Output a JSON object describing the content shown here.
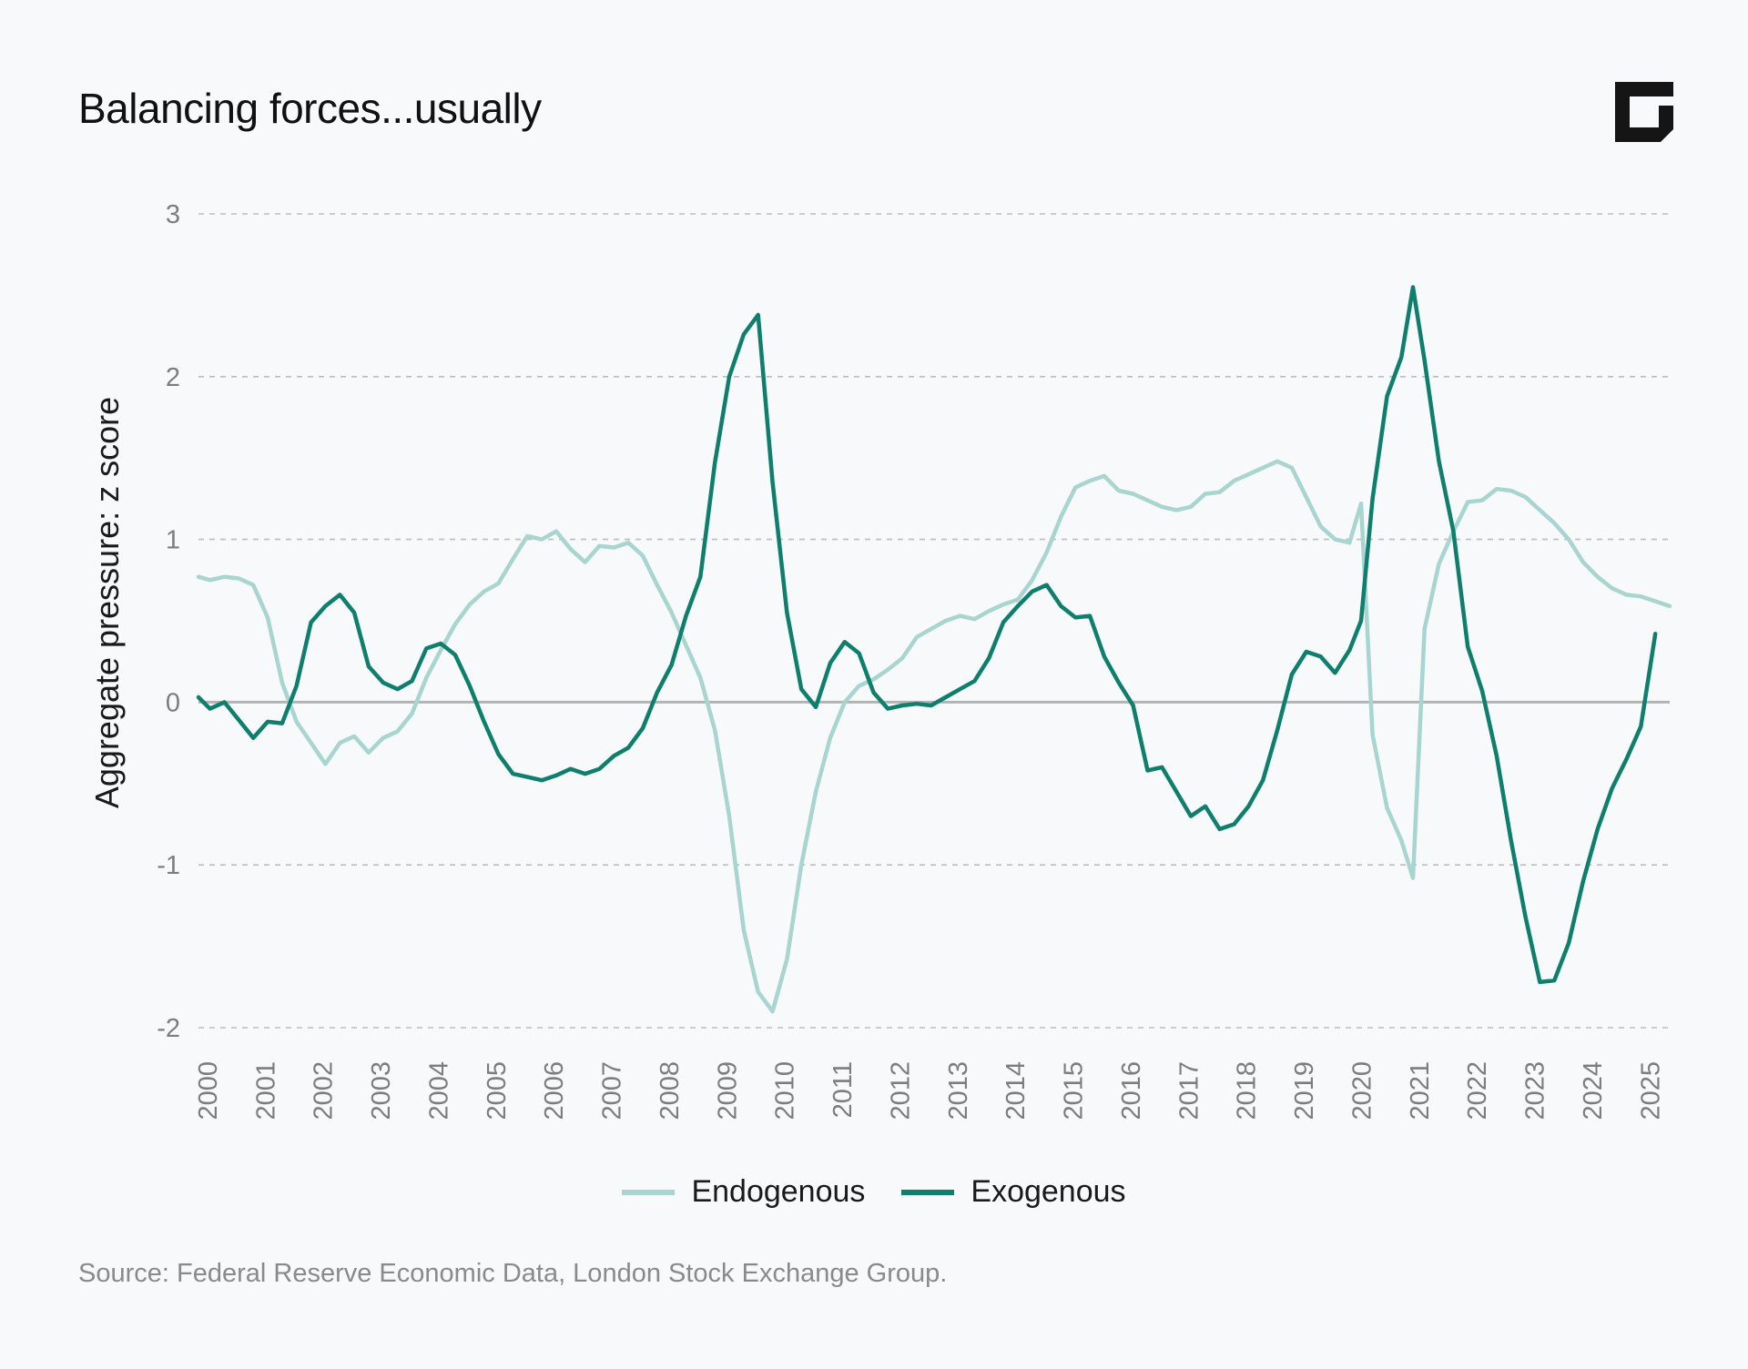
{
  "chart_data": {
    "type": "line",
    "title": "Balancing forces...usually",
    "ylabel": "Aggregate pressure: z score",
    "xlabel": "",
    "ylim": [
      -2,
      3
    ],
    "xlim": [
      2000,
      2025.5
    ],
    "yticks": [
      3,
      2,
      1,
      0,
      -1,
      -2
    ],
    "ytick_labels": [
      "3",
      "2",
      "1",
      "0",
      "-1",
      "-2"
    ],
    "xticks": [
      2000,
      2001,
      2002,
      2003,
      2004,
      2005,
      2006,
      2007,
      2008,
      2009,
      2010,
      2011,
      2012,
      2013,
      2014,
      2015,
      2016,
      2017,
      2018,
      2019,
      2020,
      2021,
      2022,
      2023,
      2024,
      2025
    ],
    "xtick_labels": [
      "2000",
      "2001",
      "2002",
      "2003",
      "2004",
      "2005",
      "2006",
      "2007",
      "2008",
      "2009",
      "2010",
      "2011",
      "2012",
      "2013",
      "2014",
      "2015",
      "2016",
      "2017",
      "2018",
      "2019",
      "2020",
      "2021",
      "2022",
      "2023",
      "2024",
      "2025"
    ],
    "grid": true,
    "legend_position": "bottom-center",
    "series": [
      {
        "name": "Endogenous",
        "color": "#a8d5cf",
        "points": [
          [
            2000.0,
            0.77
          ],
          [
            2000.2,
            0.75
          ],
          [
            2000.45,
            0.77
          ],
          [
            2000.7,
            0.76
          ],
          [
            2000.95,
            0.72
          ],
          [
            2001.2,
            0.52
          ],
          [
            2001.45,
            0.12
          ],
          [
            2001.7,
            -0.12
          ],
          [
            2001.95,
            -0.25
          ],
          [
            2002.2,
            -0.38
          ],
          [
            2002.45,
            -0.25
          ],
          [
            2002.7,
            -0.21
          ],
          [
            2002.95,
            -0.31
          ],
          [
            2003.2,
            -0.22
          ],
          [
            2003.45,
            -0.18
          ],
          [
            2003.7,
            -0.07
          ],
          [
            2003.95,
            0.15
          ],
          [
            2004.2,
            0.32
          ],
          [
            2004.45,
            0.48
          ],
          [
            2004.7,
            0.6
          ],
          [
            2004.95,
            0.68
          ],
          [
            2005.2,
            0.73
          ],
          [
            2005.45,
            0.88
          ],
          [
            2005.7,
            1.02
          ],
          [
            2005.95,
            1.0
          ],
          [
            2006.2,
            1.05
          ],
          [
            2006.45,
            0.94
          ],
          [
            2006.7,
            0.86
          ],
          [
            2006.95,
            0.96
          ],
          [
            2007.2,
            0.95
          ],
          [
            2007.45,
            0.98
          ],
          [
            2007.7,
            0.9
          ],
          [
            2007.95,
            0.72
          ],
          [
            2008.2,
            0.55
          ],
          [
            2008.45,
            0.35
          ],
          [
            2008.7,
            0.15
          ],
          [
            2008.95,
            -0.17
          ],
          [
            2009.2,
            -0.7
          ],
          [
            2009.45,
            -1.4
          ],
          [
            2009.7,
            -1.78
          ],
          [
            2009.95,
            -1.9
          ],
          [
            2010.2,
            -1.58
          ],
          [
            2010.45,
            -1.0
          ],
          [
            2010.7,
            -0.55
          ],
          [
            2010.95,
            -0.22
          ],
          [
            2011.2,
            0.0
          ],
          [
            2011.45,
            0.1
          ],
          [
            2011.7,
            0.14
          ],
          [
            2011.95,
            0.2
          ],
          [
            2012.2,
            0.27
          ],
          [
            2012.45,
            0.4
          ],
          [
            2012.7,
            0.45
          ],
          [
            2012.95,
            0.5
          ],
          [
            2013.2,
            0.53
          ],
          [
            2013.45,
            0.51
          ],
          [
            2013.7,
            0.56
          ],
          [
            2013.95,
            0.6
          ],
          [
            2014.2,
            0.63
          ],
          [
            2014.45,
            0.75
          ],
          [
            2014.7,
            0.92
          ],
          [
            2014.95,
            1.14
          ],
          [
            2015.2,
            1.32
          ],
          [
            2015.45,
            1.36
          ],
          [
            2015.7,
            1.39
          ],
          [
            2015.95,
            1.3
          ],
          [
            2016.2,
            1.28
          ],
          [
            2016.45,
            1.24
          ],
          [
            2016.7,
            1.2
          ],
          [
            2016.95,
            1.18
          ],
          [
            2017.2,
            1.2
          ],
          [
            2017.45,
            1.28
          ],
          [
            2017.7,
            1.29
          ],
          [
            2017.95,
            1.36
          ],
          [
            2018.2,
            1.4
          ],
          [
            2018.45,
            1.44
          ],
          [
            2018.7,
            1.48
          ],
          [
            2018.95,
            1.44
          ],
          [
            2019.2,
            1.26
          ],
          [
            2019.45,
            1.08
          ],
          [
            2019.7,
            1.0
          ],
          [
            2019.95,
            0.98
          ],
          [
            2020.15,
            1.22
          ],
          [
            2020.35,
            -0.2
          ],
          [
            2020.6,
            -0.65
          ],
          [
            2020.85,
            -0.85
          ],
          [
            2021.05,
            -1.08
          ],
          [
            2021.25,
            0.45
          ],
          [
            2021.5,
            0.85
          ],
          [
            2021.75,
            1.05
          ],
          [
            2022.0,
            1.23
          ],
          [
            2022.25,
            1.24
          ],
          [
            2022.5,
            1.31
          ],
          [
            2022.75,
            1.3
          ],
          [
            2023.0,
            1.26
          ],
          [
            2023.25,
            1.18
          ],
          [
            2023.5,
            1.1
          ],
          [
            2023.75,
            1.0
          ],
          [
            2024.0,
            0.86
          ],
          [
            2024.25,
            0.77
          ],
          [
            2024.5,
            0.7
          ],
          [
            2024.75,
            0.66
          ],
          [
            2025.0,
            0.65
          ],
          [
            2025.25,
            0.62
          ],
          [
            2025.5,
            0.59
          ]
        ]
      },
      {
        "name": "Exogenous",
        "color": "#0e7f6d",
        "points": [
          [
            2000.0,
            0.03
          ],
          [
            2000.2,
            -0.04
          ],
          [
            2000.45,
            0.0
          ],
          [
            2000.7,
            -0.11
          ],
          [
            2000.95,
            -0.22
          ],
          [
            2001.2,
            -0.12
          ],
          [
            2001.45,
            -0.13
          ],
          [
            2001.7,
            0.1
          ],
          [
            2001.95,
            0.49
          ],
          [
            2002.2,
            0.59
          ],
          [
            2002.45,
            0.66
          ],
          [
            2002.7,
            0.55
          ],
          [
            2002.95,
            0.22
          ],
          [
            2003.2,
            0.12
          ],
          [
            2003.45,
            0.08
          ],
          [
            2003.7,
            0.13
          ],
          [
            2003.95,
            0.33
          ],
          [
            2004.2,
            0.36
          ],
          [
            2004.45,
            0.29
          ],
          [
            2004.7,
            0.1
          ],
          [
            2004.95,
            -0.12
          ],
          [
            2005.2,
            -0.32
          ],
          [
            2005.45,
            -0.44
          ],
          [
            2005.7,
            -0.46
          ],
          [
            2005.95,
            -0.48
          ],
          [
            2006.2,
            -0.45
          ],
          [
            2006.45,
            -0.41
          ],
          [
            2006.7,
            -0.44
          ],
          [
            2006.95,
            -0.41
          ],
          [
            2007.2,
            -0.33
          ],
          [
            2007.45,
            -0.28
          ],
          [
            2007.7,
            -0.16
          ],
          [
            2007.95,
            0.06
          ],
          [
            2008.2,
            0.23
          ],
          [
            2008.45,
            0.53
          ],
          [
            2008.7,
            0.77
          ],
          [
            2008.95,
            1.47
          ],
          [
            2009.2,
            2.0
          ],
          [
            2009.45,
            2.26
          ],
          [
            2009.7,
            2.38
          ],
          [
            2009.95,
            1.35
          ],
          [
            2010.2,
            0.55
          ],
          [
            2010.45,
            0.08
          ],
          [
            2010.7,
            -0.03
          ],
          [
            2010.95,
            0.24
          ],
          [
            2011.2,
            0.37
          ],
          [
            2011.45,
            0.3
          ],
          [
            2011.7,
            0.06
          ],
          [
            2011.95,
            -0.04
          ],
          [
            2012.2,
            -0.02
          ],
          [
            2012.45,
            -0.01
          ],
          [
            2012.7,
            -0.02
          ],
          [
            2012.95,
            0.03
          ],
          [
            2013.2,
            0.08
          ],
          [
            2013.45,
            0.13
          ],
          [
            2013.7,
            0.27
          ],
          [
            2013.95,
            0.49
          ],
          [
            2014.2,
            0.59
          ],
          [
            2014.45,
            0.68
          ],
          [
            2014.7,
            0.72
          ],
          [
            2014.95,
            0.59
          ],
          [
            2015.2,
            0.52
          ],
          [
            2015.45,
            0.53
          ],
          [
            2015.7,
            0.28
          ],
          [
            2015.95,
            0.12
          ],
          [
            2016.2,
            -0.02
          ],
          [
            2016.45,
            -0.42
          ],
          [
            2016.7,
            -0.4
          ],
          [
            2016.95,
            -0.55
          ],
          [
            2017.2,
            -0.7
          ],
          [
            2017.45,
            -0.64
          ],
          [
            2017.7,
            -0.78
          ],
          [
            2017.95,
            -0.75
          ],
          [
            2018.2,
            -0.64
          ],
          [
            2018.45,
            -0.48
          ],
          [
            2018.7,
            -0.17
          ],
          [
            2018.95,
            0.17
          ],
          [
            2019.2,
            0.31
          ],
          [
            2019.45,
            0.28
          ],
          [
            2019.7,
            0.18
          ],
          [
            2019.95,
            0.32
          ],
          [
            2020.15,
            0.5
          ],
          [
            2020.35,
            1.25
          ],
          [
            2020.6,
            1.88
          ],
          [
            2020.85,
            2.12
          ],
          [
            2021.05,
            2.55
          ],
          [
            2021.25,
            2.1
          ],
          [
            2021.5,
            1.48
          ],
          [
            2021.75,
            1.05
          ],
          [
            2022.0,
            0.34
          ],
          [
            2022.25,
            0.07
          ],
          [
            2022.5,
            -0.33
          ],
          [
            2022.75,
            -0.85
          ],
          [
            2023.0,
            -1.32
          ],
          [
            2023.25,
            -1.72
          ],
          [
            2023.5,
            -1.71
          ],
          [
            2023.75,
            -1.48
          ],
          [
            2024.0,
            -1.1
          ],
          [
            2024.25,
            -0.78
          ],
          [
            2024.5,
            -0.53
          ],
          [
            2024.75,
            -0.35
          ],
          [
            2025.0,
            -0.15
          ],
          [
            2025.25,
            0.42
          ]
        ]
      }
    ]
  },
  "header": {
    "title": "Balancing forces...usually",
    "logo_icon": "corner-bracket-logo-icon"
  },
  "legend": {
    "items": [
      {
        "label": "Endogenous",
        "color": "#a8d5cf"
      },
      {
        "label": "Exogenous",
        "color": "#0e7f6d"
      }
    ]
  },
  "footer": {
    "source": "Source: Federal Reserve Economic Data, London Stock Exchange Group."
  }
}
